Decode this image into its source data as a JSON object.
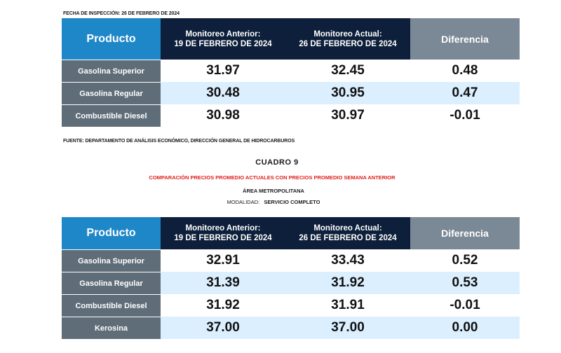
{
  "inspection_date": "FECHA DE INSPECCIÓN: 26 DE FEBRERO DE 2024",
  "source_note": "FUENTE: DEPARTAMENTO DE ANÁLISIS ECONÓMICO, DIRECCIÓN GENERAL DE HIDROCARBUROS",
  "cuadro_title": "CUADRO 9",
  "comparison_title": "COMPARACIÓN PRECIOS PROMEDIO ACTUALES CON PRECIOS PROMEDIO SEMANA ANTERIOR",
  "area": "ÁREA METROPOLITANA",
  "modality_label": "MODALIDAD:",
  "modality_value": "SERVICIO COMPLETO",
  "headers": {
    "product": "Producto",
    "prev_line1": "Monitoreo Anterior:",
    "prev_line2": "19 DE  FEBRERO DE 2024",
    "curr_line1": "Monitoreo Actual:",
    "curr_line2": "26 DE FEBRERO DE 2024",
    "diff": "Diferencia"
  },
  "table1": {
    "rows": [
      {
        "product": "Gasolina Superior",
        "prev": "31.97",
        "curr": "32.45",
        "diff": "0.48"
      },
      {
        "product": "Gasolina Regular",
        "prev": "30.48",
        "curr": "30.95",
        "diff": "0.47"
      },
      {
        "product": "Combustible Diesel",
        "prev": "30.98",
        "curr": "30.97",
        "diff": "-0.01"
      }
    ]
  },
  "table2": {
    "rows": [
      {
        "product": "Gasolina Superior",
        "prev": "32.91",
        "curr": "33.43",
        "diff": "0.52"
      },
      {
        "product": "Gasolina Regular",
        "prev": "31.39",
        "curr": "31.92",
        "diff": "0.53"
      },
      {
        "product": "Combustible Diesel",
        "prev": "31.92",
        "curr": "31.91",
        "diff": "-0.01"
      },
      {
        "product": "Kerosina",
        "prev": "37.00",
        "curr": "37.00",
        "diff": "0.00"
      }
    ]
  },
  "colors": {
    "product_header": "#1e87c8",
    "monitor_header": "#0d1f3a",
    "diff_header": "#7b8895",
    "product_cell": "#5f6d79",
    "alt_row": "#dcefff",
    "title_red": "#e0201b"
  }
}
